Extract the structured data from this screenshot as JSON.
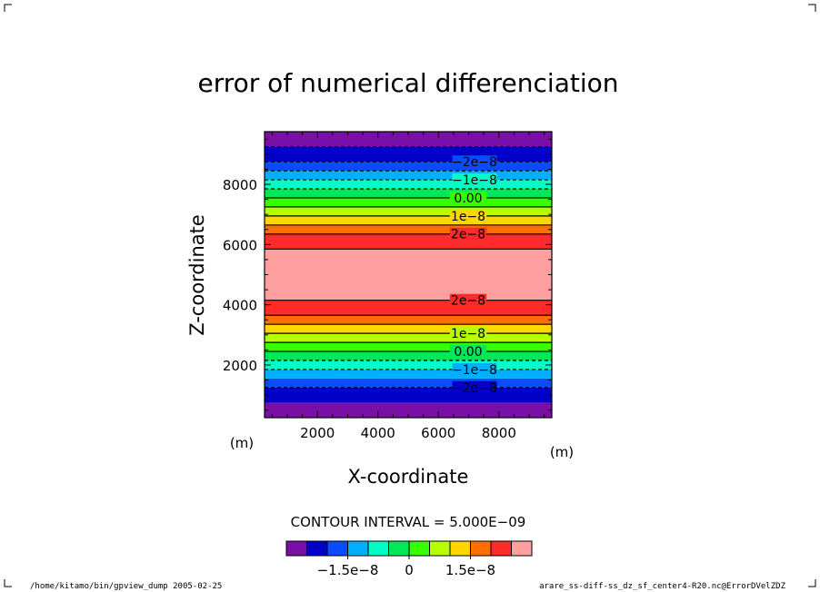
{
  "chart_data": {
    "type": "heatmap",
    "subtype": "filled-contour",
    "title": "error of numerical differenciation",
    "xlabel": "X-coordinate",
    "ylabel": "Z-coordinate",
    "x_unit": "(m)",
    "y_unit": "(m)",
    "xlim": [
      250,
      9750
    ],
    "ylim": [
      250,
      9750
    ],
    "x_ticks": [
      2000,
      4000,
      6000,
      8000
    ],
    "x_tick_labels": [
      "2000",
      "4000",
      "6000",
      "8000"
    ],
    "y_ticks": [
      2000,
      4000,
      6000,
      8000
    ],
    "y_tick_labels": [
      "2000",
      "4000",
      "6000",
      "8000"
    ],
    "x_minor_step": 500,
    "y_minor_step": 500,
    "grid": false,
    "field_description_levels": [
      -3e-08,
      -2.5e-08,
      -2e-08,
      -1.5e-08,
      -1e-08,
      -5e-09,
      0.0,
      5e-09,
      1e-08,
      1.5e-08,
      2e-08,
      2.5e-08,
      3e-08
    ],
    "bands": [
      {
        "z0": 250,
        "z1": 750,
        "level": 0
      },
      {
        "z0": 750,
        "z1": 1250,
        "level": 1
      },
      {
        "z0": 1250,
        "z1": 1550,
        "level": 2
      },
      {
        "z0": 1550,
        "z1": 1850,
        "level": 3
      },
      {
        "z0": 1850,
        "z1": 2150,
        "level": 4
      },
      {
        "z0": 2150,
        "z1": 2450,
        "level": 5
      },
      {
        "z0": 2450,
        "z1": 2750,
        "level": 6
      },
      {
        "z0": 2750,
        "z1": 3050,
        "level": 7
      },
      {
        "z0": 3050,
        "z1": 3350,
        "level": 8
      },
      {
        "z0": 3350,
        "z1": 3650,
        "level": 9
      },
      {
        "z0": 3650,
        "z1": 4150,
        "level": 10
      },
      {
        "z0": 4150,
        "z1": 5850,
        "level": 12
      },
      {
        "z0": 5850,
        "z1": 6350,
        "level": 10
      },
      {
        "z0": 6350,
        "z1": 6650,
        "level": 9
      },
      {
        "z0": 6650,
        "z1": 6950,
        "level": 8
      },
      {
        "z0": 6950,
        "z1": 7250,
        "level": 7
      },
      {
        "z0": 7250,
        "z1": 7550,
        "level": 6
      },
      {
        "z0": 7550,
        "z1": 7850,
        "level": 5
      },
      {
        "z0": 7850,
        "z1": 8150,
        "level": 4
      },
      {
        "z0": 8150,
        "z1": 8450,
        "level": 3
      },
      {
        "z0": 8450,
        "z1": 8750,
        "level": 2
      },
      {
        "z0": 8750,
        "z1": 9250,
        "level": 1
      },
      {
        "z0": 9250,
        "z1": 9750,
        "level": 0
      }
    ],
    "contours": [
      {
        "z": 1250,
        "dashed": true,
        "label": "-2e-8"
      },
      {
        "z": 1850,
        "dashed": true,
        "label": "-1e-8"
      },
      {
        "z": 2150,
        "dashed": true,
        "label": ""
      },
      {
        "z": 2450,
        "dashed": false,
        "label": "0.00"
      },
      {
        "z": 2750,
        "dashed": false,
        "label": ""
      },
      {
        "z": 3050,
        "dashed": false,
        "label": "1e-8"
      },
      {
        "z": 3350,
        "dashed": false,
        "label": ""
      },
      {
        "z": 3650,
        "dashed": false,
        "label": ""
      },
      {
        "z": 4150,
        "dashed": false,
        "label": "2e-8"
      },
      {
        "z": 5850,
        "dashed": false,
        "label": ""
      },
      {
        "z": 6350,
        "dashed": false,
        "label": "2e-8"
      },
      {
        "z": 6650,
        "dashed": false,
        "label": ""
      },
      {
        "z": 6950,
        "dashed": false,
        "label": "1e-8"
      },
      {
        "z": 7250,
        "dashed": false,
        "label": ""
      },
      {
        "z": 7550,
        "dashed": false,
        "label": "0.00"
      },
      {
        "z": 7850,
        "dashed": true,
        "label": ""
      },
      {
        "z": 8150,
        "dashed": true,
        "label": "-1e-8"
      },
      {
        "z": 8450,
        "dashed": true,
        "label": ""
      },
      {
        "z": 8750,
        "dashed": true,
        "label": "-2e-8"
      },
      {
        "z": 9250,
        "dashed": true,
        "label": ""
      }
    ],
    "colors": [
      "#7a0fa8",
      "#0000c8",
      "#0a4bff",
      "#00b0ff",
      "#00ffc4",
      "#00e85a",
      "#38ff00",
      "#b6ff00",
      "#ffd700",
      "#ff6e00",
      "#ff2a2a",
      "#ff2a2a",
      "#ffa0a0"
    ],
    "colorbar": {
      "colors": [
        "#7a0fa8",
        "#0000c8",
        "#0a4bff",
        "#00b0ff",
        "#00ffc4",
        "#00e85a",
        "#38ff00",
        "#b6ff00",
        "#ffd700",
        "#ff6e00",
        "#ff2a2a",
        "#ffa0a0"
      ],
      "tick_labels": [
        "−1.5e−8",
        "0",
        "1.5e−8"
      ]
    },
    "contour_interval_text": "CONTOUR INTERVAL = 5.000E−09"
  },
  "footer": {
    "left": "/home/kitamo/bin/gpview_dump  2005-02-25",
    "right": "arare_ss-diff-ss_dz_sf_center4-R20.nc@ErrorDVelZDZ"
  }
}
